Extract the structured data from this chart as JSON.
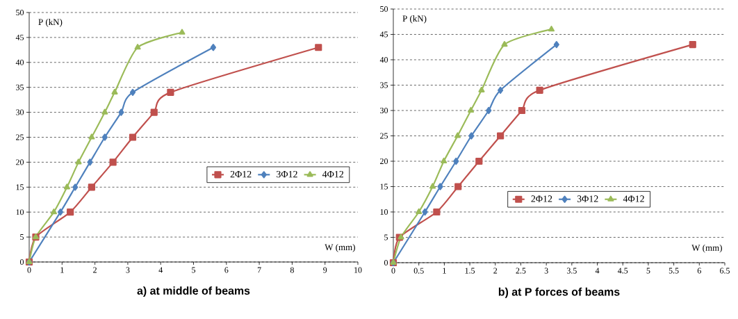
{
  "chart_data": [
    {
      "type": "line",
      "title": "a) at middle of beams",
      "xlabel": "W (mm)",
      "ylabel": "P (kN)",
      "xlim": [
        0,
        10
      ],
      "xticks": [
        0,
        1,
        2,
        3,
        4,
        5,
        6,
        7,
        8,
        9,
        10
      ],
      "ylim": [
        0,
        50
      ],
      "yticks": [
        0,
        5,
        10,
        15,
        20,
        25,
        30,
        35,
        40,
        45,
        50
      ],
      "grid": "y",
      "legend": "right",
      "series": [
        {
          "name": "2Φ12",
          "color": "#c0504d",
          "marker": "square",
          "x": [
            0,
            0.2,
            1.25,
            1.9,
            2.55,
            3.15,
            3.8,
            4.3,
            8.8
          ],
          "values": [
            0,
            5,
            10,
            15,
            20,
            25,
            30,
            34,
            43
          ]
        },
        {
          "name": "3Φ12",
          "color": "#4f81bd",
          "marker": "diamond",
          "x": [
            0,
            0.2,
            0.95,
            1.4,
            1.85,
            2.3,
            2.8,
            3.15,
            5.6
          ],
          "values": [
            0,
            null,
            10,
            15,
            20,
            25,
            30,
            34,
            43
          ]
        },
        {
          "name": "4Φ12",
          "color": "#9bbb59",
          "marker": "triangle",
          "x": [
            0,
            0.2,
            0.75,
            1.15,
            1.5,
            1.9,
            2.3,
            2.6,
            3.3,
            4.65
          ],
          "values": [
            0,
            5,
            10,
            15,
            20,
            25,
            30,
            34,
            43,
            46
          ]
        }
      ]
    },
    {
      "type": "line",
      "title": "b) at P forces of beams",
      "xlabel": "W (mm)",
      "ylabel": "P (kN)",
      "xlim": [
        0,
        6.5
      ],
      "xticks": [
        0,
        0.5,
        1,
        1.5,
        2,
        2.5,
        3,
        3.5,
        4,
        4.5,
        5,
        5.5,
        6,
        6.5
      ],
      "ylim": [
        0,
        50
      ],
      "yticks": [
        0,
        5,
        10,
        15,
        20,
        25,
        30,
        35,
        40,
        45,
        50
      ],
      "grid": "y",
      "legend": "bottom",
      "series": [
        {
          "name": "2Φ12",
          "color": "#c0504d",
          "marker": "square",
          "x": [
            0,
            0.12,
            0.85,
            1.27,
            1.68,
            2.1,
            2.52,
            2.87,
            5.87
          ],
          "values": [
            0,
            5,
            10,
            15,
            20,
            25,
            30,
            34,
            43
          ]
        },
        {
          "name": "3Φ12",
          "color": "#4f81bd",
          "marker": "diamond",
          "x": [
            0,
            0.15,
            0.62,
            0.92,
            1.23,
            1.53,
            1.87,
            2.1,
            3.2
          ],
          "values": [
            0,
            null,
            10,
            15,
            20,
            25,
            30,
            34,
            43
          ]
        },
        {
          "name": "4Φ12",
          "color": "#9bbb59",
          "marker": "triangle",
          "x": [
            0,
            0.15,
            0.5,
            0.77,
            0.99,
            1.26,
            1.52,
            1.73,
            2.18,
            3.1
          ],
          "values": [
            0,
            5,
            10,
            15,
            20,
            25,
            30,
            34,
            43,
            46
          ]
        }
      ]
    }
  ]
}
